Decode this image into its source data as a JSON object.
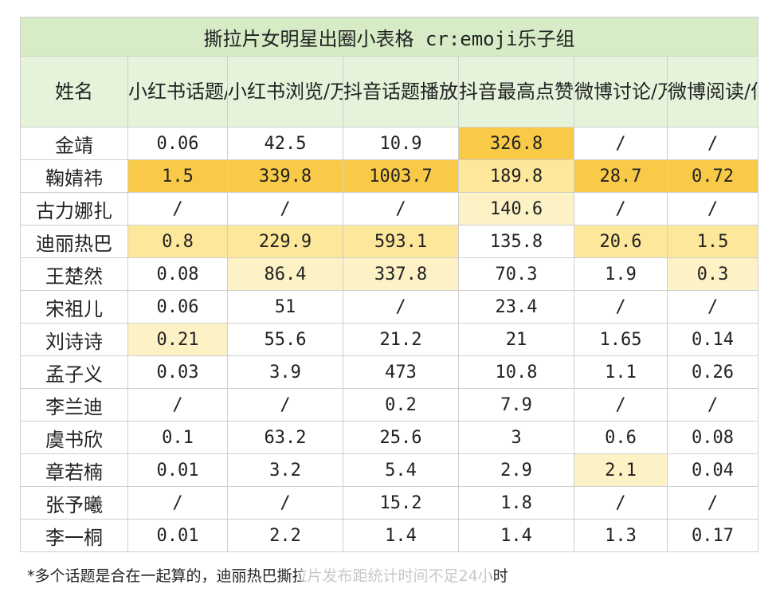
{
  "title": "撕拉片女明星出圈小表格 cr:emoji乐子组",
  "headers": [
    "姓名",
    "小红书话题/万",
    "小红书浏览/万",
    "抖音话题播放/万",
    "抖音最高点赞/万",
    "微博讨论/万",
    "微博阅读/亿"
  ],
  "rows": [
    {
      "name": "金靖",
      "cells": [
        "0.06",
        "42.5",
        "10.9",
        "326.8",
        "/",
        "/"
      ],
      "hl": [
        "",
        "",
        "",
        "dark",
        "",
        ""
      ]
    },
    {
      "name": "鞠婧祎",
      "cells": [
        "1.5",
        "339.8",
        "1003.7",
        "189.8",
        "28.7",
        "0.72"
      ],
      "hl": [
        "dark",
        "dark",
        "dark",
        "mid",
        "dark",
        "dark"
      ]
    },
    {
      "name": "古力娜扎",
      "cells": [
        "/",
        "/",
        "/",
        "140.6",
        "/",
        "/"
      ],
      "hl": [
        "",
        "",
        "",
        "light",
        "",
        ""
      ]
    },
    {
      "name": "迪丽热巴",
      "cells": [
        "0.8",
        "229.9",
        "593.1",
        "135.8",
        "20.6",
        "1.5"
      ],
      "hl": [
        "mid",
        "mid",
        "mid",
        "",
        "mid",
        "mid"
      ]
    },
    {
      "name": "王楚然",
      "cells": [
        "0.08",
        "86.4",
        "337.8",
        "70.3",
        "1.9",
        "0.3"
      ],
      "hl": [
        "",
        "light",
        "light",
        "",
        "",
        "light"
      ]
    },
    {
      "name": "宋祖儿",
      "cells": [
        "0.06",
        "51",
        "/",
        "23.4",
        "/",
        "/"
      ],
      "hl": [
        "",
        "",
        "",
        "",
        "",
        ""
      ]
    },
    {
      "name": "刘诗诗",
      "cells": [
        "0.21",
        "55.6",
        "21.2",
        "21",
        "1.65",
        "0.14"
      ],
      "hl": [
        "light",
        "",
        "",
        "",
        "",
        ""
      ]
    },
    {
      "name": "孟子义",
      "cells": [
        "0.03",
        "3.9",
        "473",
        "10.8",
        "1.1",
        "0.26"
      ],
      "hl": [
        "",
        "",
        "",
        "",
        "",
        ""
      ]
    },
    {
      "name": "李兰迪",
      "cells": [
        "/",
        "/",
        "0.2",
        "7.9",
        "/",
        "/"
      ],
      "hl": [
        "",
        "",
        "",
        "",
        "",
        ""
      ]
    },
    {
      "name": "虞书欣",
      "cells": [
        "0.1",
        "63.2",
        "25.6",
        "3",
        "0.6",
        "0.08"
      ],
      "hl": [
        "",
        "",
        "",
        "",
        "",
        ""
      ]
    },
    {
      "name": "章若楠",
      "cells": [
        "0.01",
        "3.2",
        "5.4",
        "2.9",
        "2.1",
        "0.04"
      ],
      "hl": [
        "",
        "",
        "",
        "",
        "light",
        ""
      ]
    },
    {
      "name": "张予曦",
      "cells": [
        "/",
        "/",
        "15.2",
        "1.8",
        "/",
        "/"
      ],
      "hl": [
        "",
        "",
        "",
        "",
        "",
        ""
      ]
    },
    {
      "name": "李一桐",
      "cells": [
        "0.01",
        "2.2",
        "1.4",
        "1.4",
        "1.3",
        "0.17"
      ],
      "hl": [
        "",
        "",
        "",
        "",
        "",
        ""
      ]
    }
  ],
  "footnote": "*多个话题是合在一起算的，迪丽热巴撕拉片发布距统计时间不足24小时",
  "colors": {
    "title_bg": "#d6ecc6",
    "header_bg": "#e4f3da",
    "highlight_dark": "#f9ca48",
    "highlight_mid": "#fde79a",
    "highlight_light": "#fdf1c6"
  }
}
